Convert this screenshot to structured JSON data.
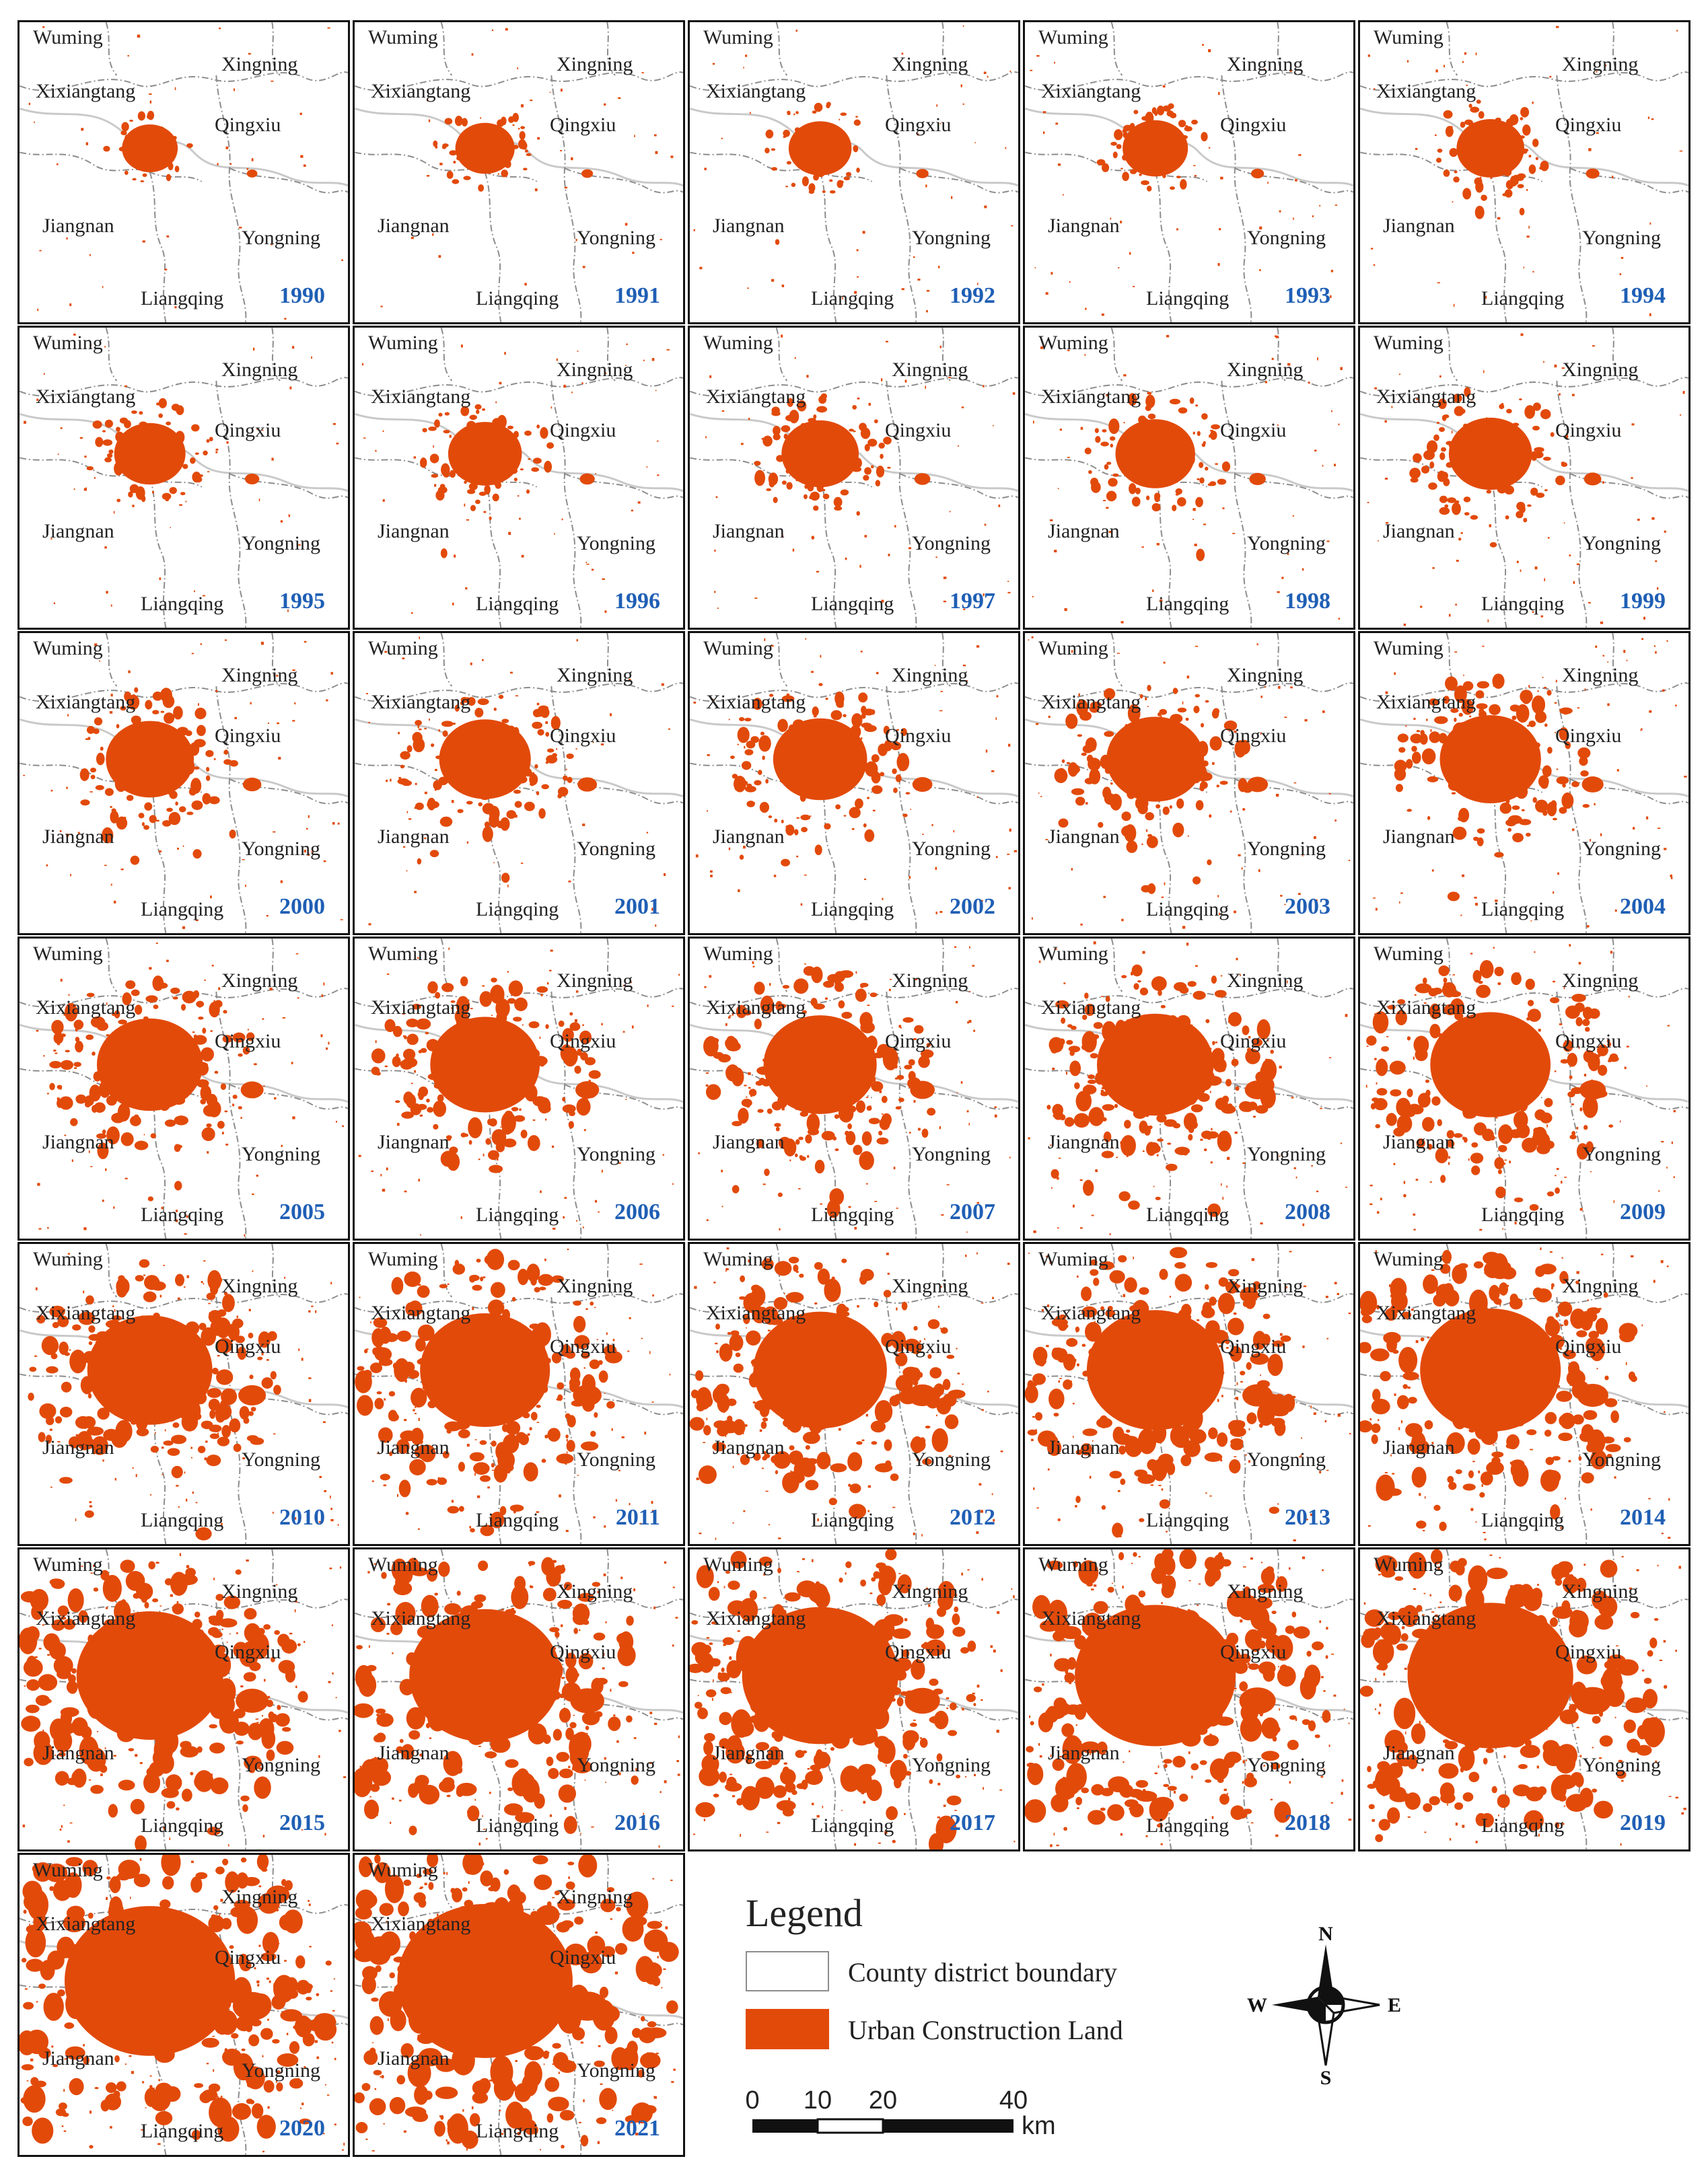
{
  "colors": {
    "urban": "#e24a0a",
    "boundary": "#8c8c8c",
    "frame": "#111111",
    "year": "#1f5fb5"
  },
  "districts": [
    "Wuming",
    "Xingning",
    "Xixiangtang",
    "Qingxiu",
    "Jiangnan",
    "Yongning",
    "Liangqing"
  ],
  "panels": [
    {
      "year": "1990",
      "level": 0.0
    },
    {
      "year": "1991",
      "level": 0.03
    },
    {
      "year": "1992",
      "level": 0.06
    },
    {
      "year": "1993",
      "level": 0.08
    },
    {
      "year": "1994",
      "level": 0.1
    },
    {
      "year": "1995",
      "level": 0.13
    },
    {
      "year": "1996",
      "level": 0.15
    },
    {
      "year": "1997",
      "level": 0.18
    },
    {
      "year": "1998",
      "level": 0.2
    },
    {
      "year": "1999",
      "level": 0.23
    },
    {
      "year": "2000",
      "level": 0.27
    },
    {
      "year": "2001",
      "level": 0.3
    },
    {
      "year": "2002",
      "level": 0.32
    },
    {
      "year": "2003",
      "level": 0.35
    },
    {
      "year": "2004",
      "level": 0.38
    },
    {
      "year": "2005",
      "level": 0.42
    },
    {
      "year": "2006",
      "level": 0.45
    },
    {
      "year": "2007",
      "level": 0.48
    },
    {
      "year": "2008",
      "level": 0.51
    },
    {
      "year": "2009",
      "level": 0.54
    },
    {
      "year": "2010",
      "level": 0.58
    },
    {
      "year": "2011",
      "level": 0.62
    },
    {
      "year": "2012",
      "level": 0.65
    },
    {
      "year": "2013",
      "level": 0.68
    },
    {
      "year": "2014",
      "level": 0.71
    },
    {
      "year": "2015",
      "level": 0.76
    },
    {
      "year": "2016",
      "level": 0.8
    },
    {
      "year": "2017",
      "level": 0.84
    },
    {
      "year": "2018",
      "level": 0.88
    },
    {
      "year": "2019",
      "level": 0.92
    },
    {
      "year": "2020",
      "level": 0.96
    },
    {
      "year": "2021",
      "level": 1.0
    }
  ],
  "legend": {
    "title": "Legend",
    "boundary_label": "County district boundary",
    "urban_label": "Urban Construction Land"
  },
  "compass": {
    "n": "N",
    "s": "S",
    "e": "E",
    "w": "W"
  },
  "scale_bar": {
    "ticks": [
      "0",
      "10",
      "20",
      "40"
    ],
    "unit": "km"
  }
}
